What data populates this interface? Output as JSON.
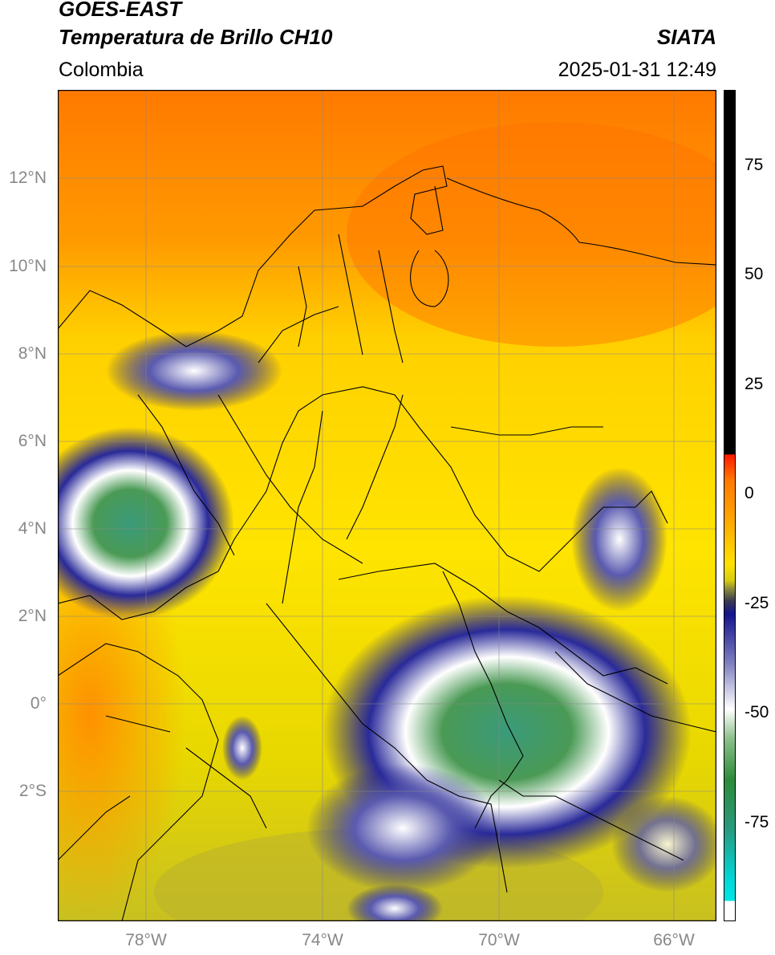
{
  "header": {
    "satellite": "GOES-EAST",
    "product": "Temperatura de Brillo CH10",
    "organization": "SIATA",
    "region": "Colombia",
    "datetime": "2025-01-31 12:49"
  },
  "map": {
    "lat_labels": [
      "12°N",
      "10°N",
      "8°N",
      "6°N",
      "4°N",
      "2°N",
      "0°",
      "2°S"
    ],
    "lon_labels": [
      "78°W",
      "74°W",
      "70°W",
      "66°W"
    ],
    "gridlines": true
  },
  "colorbar": {
    "tick_labels": [
      "75",
      "50",
      "25",
      "0",
      "-25",
      "-50",
      "-75"
    ],
    "colors": {
      "black": "#000000",
      "red": "#ff0000",
      "orange": "#ff8c00",
      "yellow": "#ffe100",
      "olive": "#8c8c3c",
      "navy": "#14148c",
      "white": "#ffffff",
      "green": "#2e8b3a",
      "cyan": "#00e5e5"
    }
  }
}
